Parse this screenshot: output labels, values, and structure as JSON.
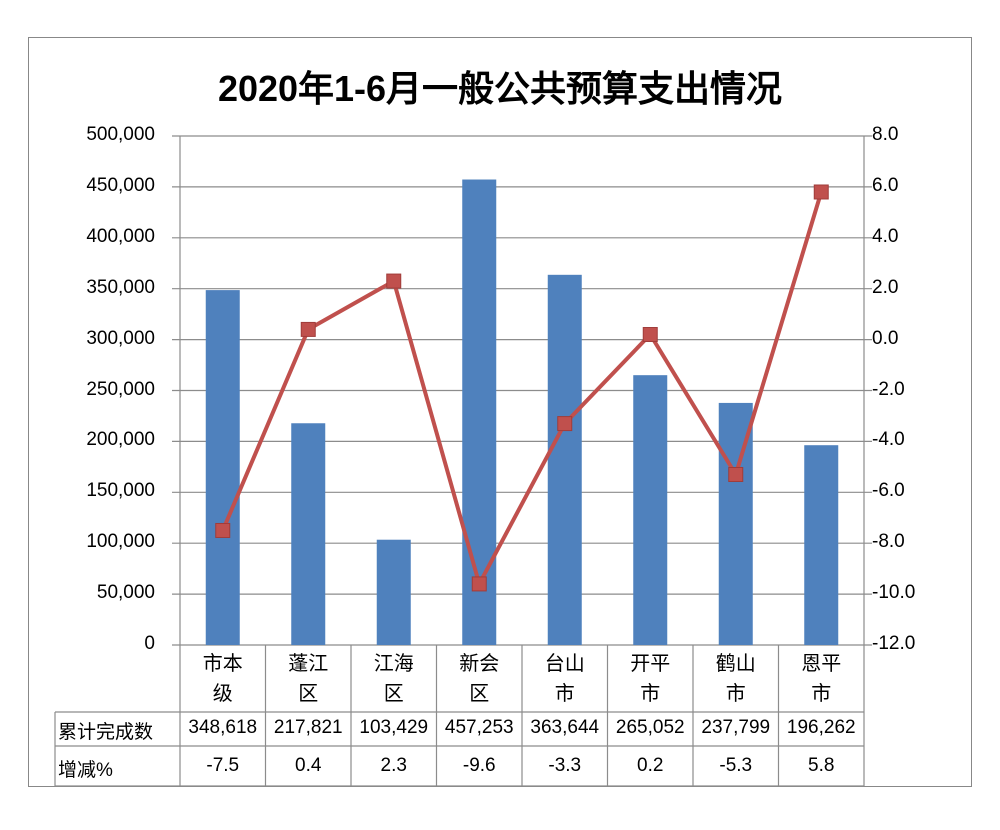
{
  "chart_data": {
    "type": "bar+line",
    "title": "2020年1-6月一般公共预算支出情况",
    "categories": [
      "市本级",
      "蓬江区",
      "江海区",
      "新会区",
      "台山市",
      "开平市",
      "鹤山市",
      "恩平市"
    ],
    "series": [
      {
        "name": "累计完成数",
        "type": "bar",
        "axis": "left",
        "color": "#4F81BD",
        "values": [
          348618,
          217821,
          103429,
          457253,
          363644,
          265052,
          237799,
          196262
        ],
        "labels": [
          "348,618",
          "217,821",
          "103,429",
          "457,253",
          "363,644",
          "265,052",
          "237,799",
          "196,262"
        ]
      },
      {
        "name": "增减%",
        "type": "line",
        "axis": "right",
        "color": "#C0504D",
        "values": [
          -7.5,
          0.4,
          2.3,
          -9.6,
          -3.3,
          0.2,
          -5.3,
          5.8
        ],
        "labels": [
          "-7.5",
          "0.4",
          "2.3",
          "-9.6",
          "-3.3",
          "0.2",
          "-5.3",
          "5.8"
        ]
      }
    ],
    "y_left": {
      "range": [
        0,
        500000
      ],
      "ticks": [
        "0",
        "50,000",
        "100,000",
        "150,000",
        "200,000",
        "250,000",
        "300,000",
        "350,000",
        "400,000",
        "450,000",
        "500,000"
      ]
    },
    "y_right": {
      "range": [
        -12,
        8
      ],
      "ticks": [
        "-12.0",
        "-10.0",
        "-8.0",
        "-6.0",
        "-4.0",
        "-2.0",
        "0.0",
        "2.0",
        "4.0",
        "6.0",
        "8.0"
      ]
    },
    "grid": true,
    "legend": "data-table"
  }
}
